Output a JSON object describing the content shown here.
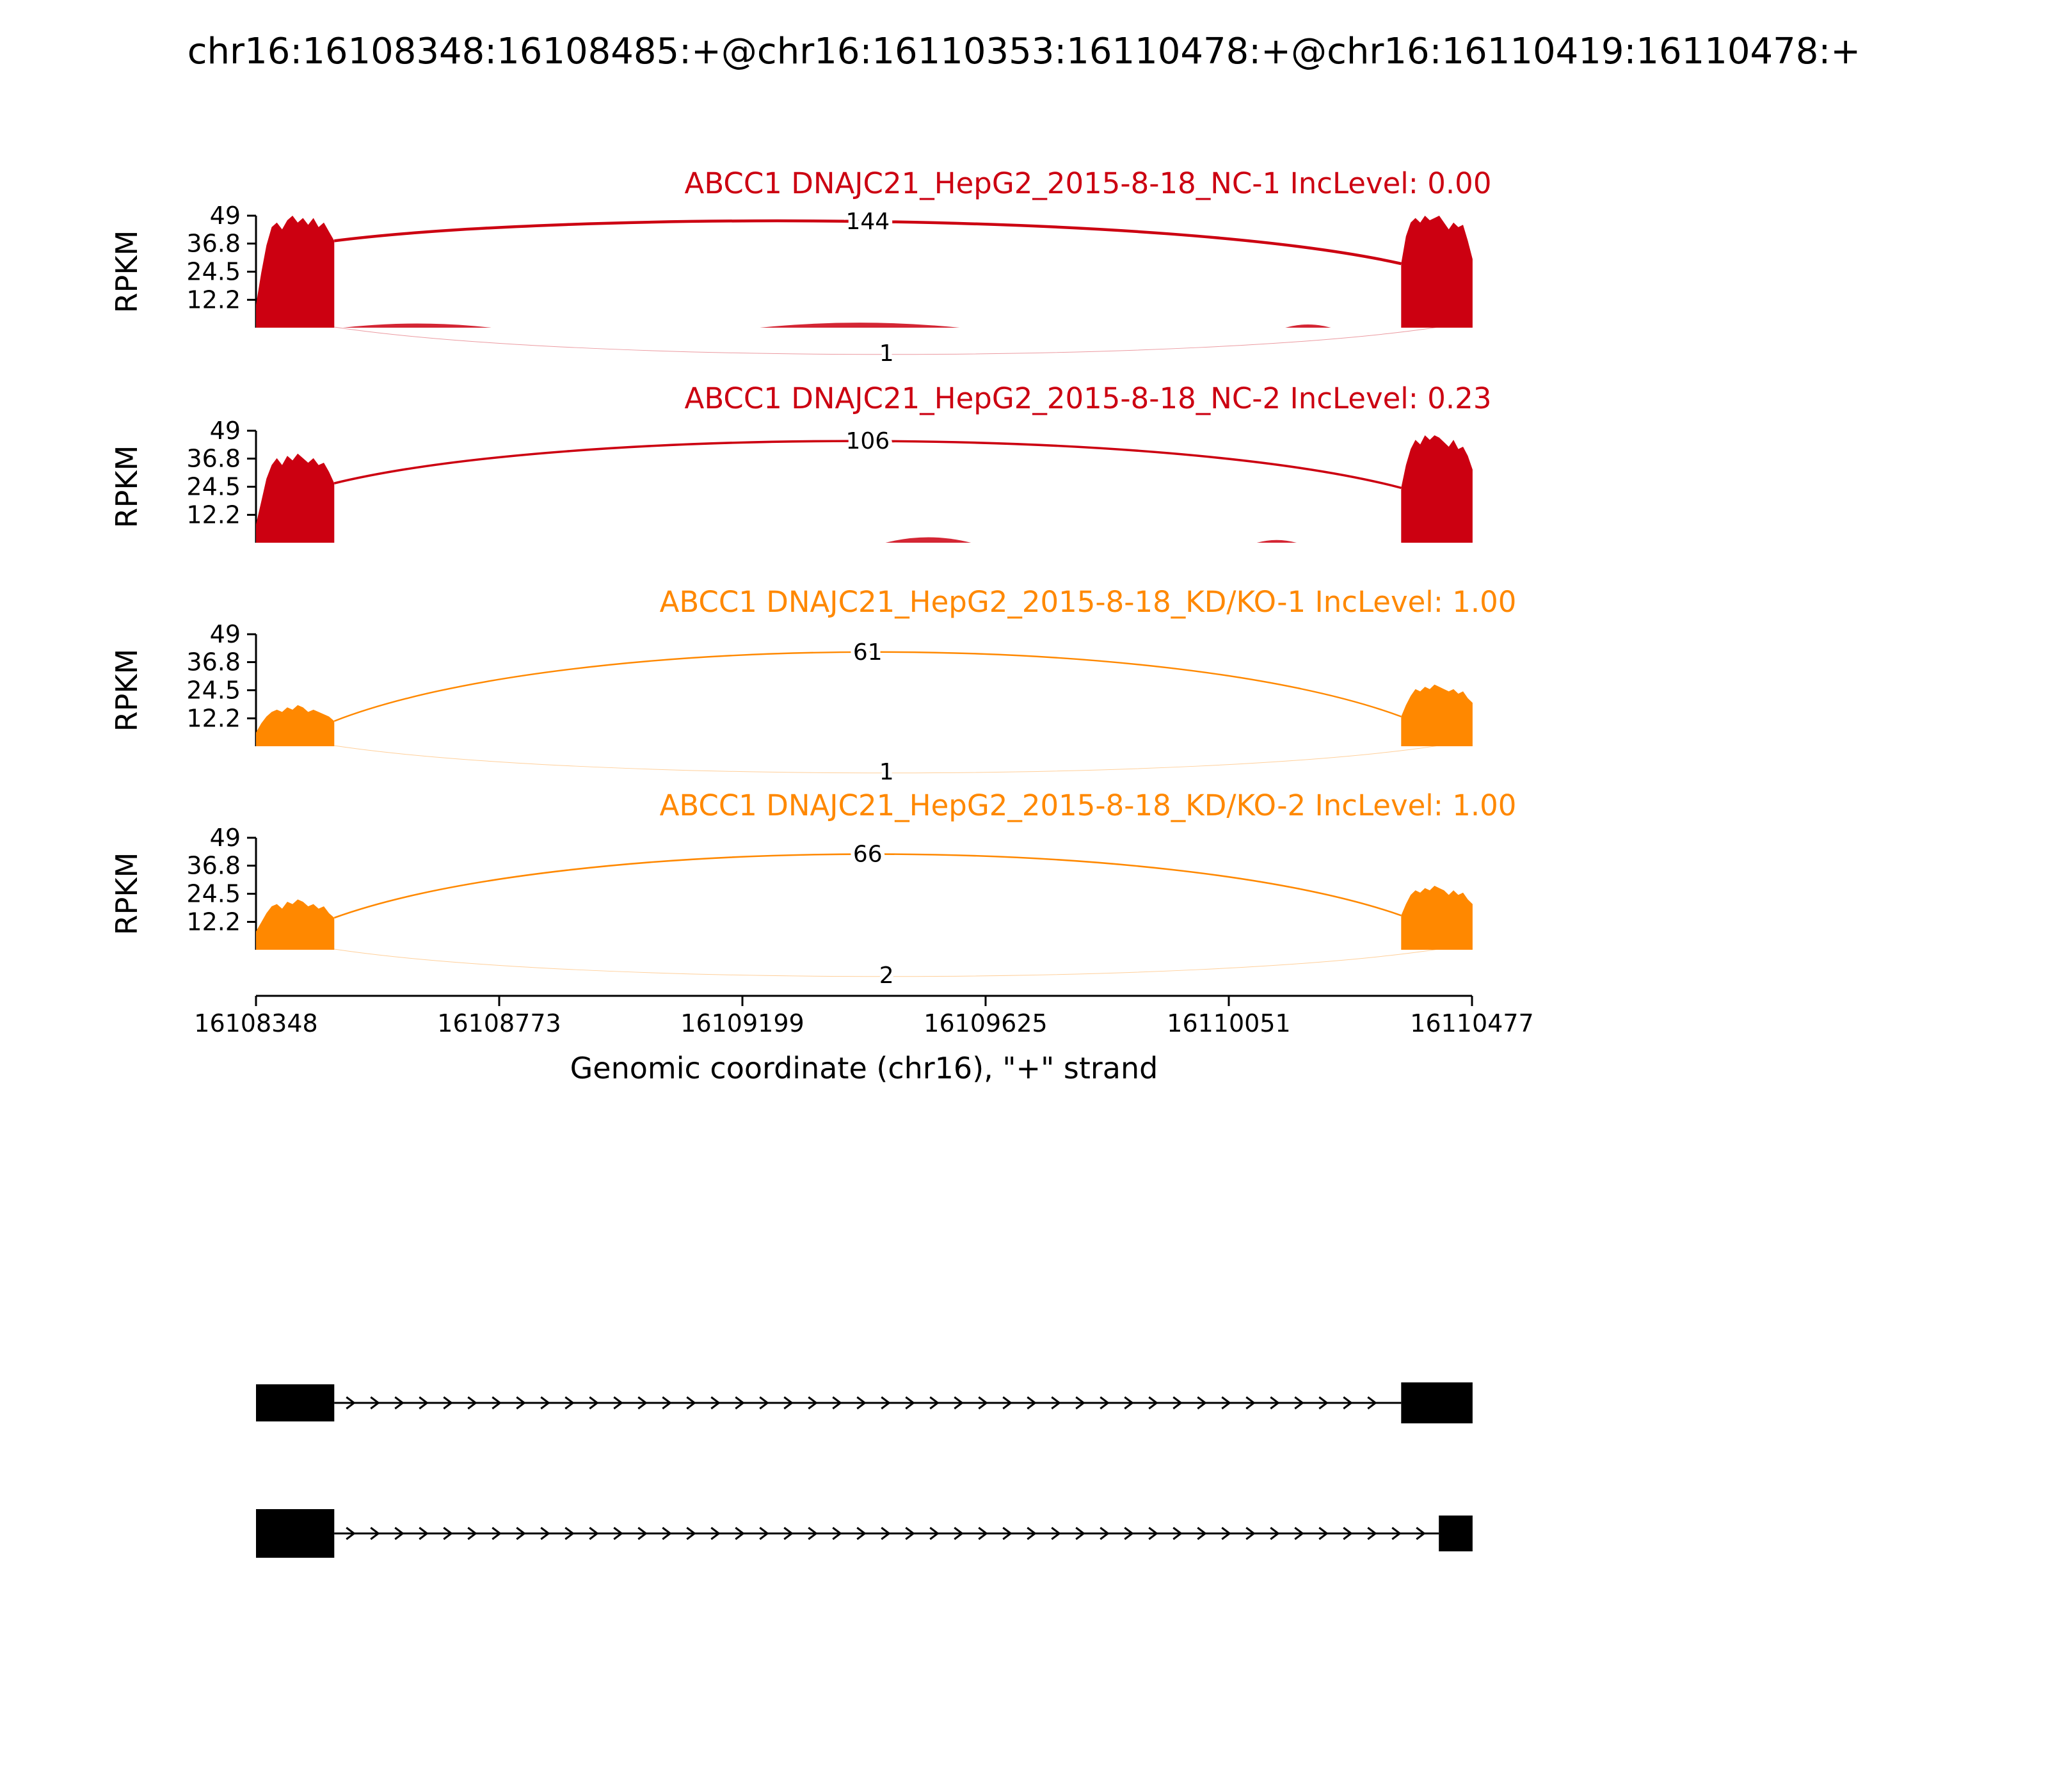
{
  "chart_data": {
    "type": "sashimi-coverage",
    "title": "chr16:16108348:16108485:+@chr16:16110353:16110478:+@chr16:16110419:16110478:+",
    "xlabel": "Genomic coordinate (chr16), \"+\" strand",
    "ylabel": "RPKM",
    "x_range": [
      16108348,
      16110477
    ],
    "x_tick_labels": [
      "16108348",
      "16108773",
      "16109199",
      "16109625",
      "16110051",
      "16110477"
    ],
    "y_ticks": [
      "49",
      "36.8",
      "24.5",
      "12.2"
    ],
    "y_max": 49,
    "legend": "none",
    "grid": false,
    "tracks": [
      {
        "title_text": "ABCC1 DNAJC21_HepG2_2015-8-18_NC-1 IncLevel: 0.00",
        "inc_level": "0.00",
        "color": "#CC0011",
        "exon_coverage": {
          "left": {
            "range": [
              16108348,
              16108485
            ],
            "rpkm": [
              10,
              24,
              36,
              44,
              46,
              43,
              47,
              49,
              46,
              48,
              45,
              48,
              44,
              46,
              42,
              38
            ]
          },
          "right": {
            "range": [
              16110353,
              16110478
            ],
            "rpkm": [
              28,
              40,
              46,
              48,
              46,
              49,
              47,
              48,
              49,
              46,
              43,
              46,
              44,
              45,
              38,
              30
            ]
          }
        },
        "noise": [
          [
            16108500,
            16108760,
            1.8
          ],
          [
            16109230,
            16109580,
            2.2
          ],
          [
            16110150,
            16110230,
            1.4
          ]
        ],
        "junctions": [
          {
            "from": 16108485,
            "to": 16110353,
            "count": 144,
            "side": "top"
          },
          {
            "from": 16108485,
            "to": 16110419,
            "count": 1,
            "side": "bottom"
          }
        ]
      },
      {
        "title_text": "ABCC1 DNAJC21_HepG2_2015-8-18_NC-2 IncLevel: 0.23",
        "inc_level": "0.23",
        "color": "#CC0011",
        "exon_coverage": {
          "left": {
            "range": [
              16108348,
              16108485
            ],
            "rpkm": [
              8,
              18,
              28,
              34,
              37,
              34,
              38,
              36,
              39,
              37,
              35,
              37,
              34,
              35,
              31,
              26
            ]
          },
          "right": {
            "range": [
              16110353,
              16110478
            ],
            "rpkm": [
              24,
              34,
              41,
              45,
              43,
              47,
              45,
              47,
              46,
              44,
              42,
              45,
              41,
              42,
              38,
              32
            ]
          }
        },
        "noise": [
          [
            16109450,
            16109600,
            2.4
          ],
          [
            16110100,
            16110170,
            1.2
          ]
        ],
        "junctions": [
          {
            "from": 16108485,
            "to": 16110353,
            "count": 106,
            "side": "top"
          }
        ]
      },
      {
        "title_text": "ABCC1 DNAJC21_HepG2_2015-8-18_KD/KO-1 IncLevel: 1.00",
        "inc_level": "1.00",
        "color": "#FF8800",
        "exon_coverage": {
          "left": {
            "range": [
              16108348,
              16108485
            ],
            "rpkm": [
              6,
              10,
              13,
              15,
              16,
              15,
              17,
              16,
              18,
              17,
              15,
              16,
              15,
              14,
              13,
              11
            ]
          },
          "right": {
            "range": [
              16110353,
              16110478
            ],
            "rpkm": [
              13,
              18,
              22,
              25,
              24,
              26,
              25,
              27,
              26,
              25,
              24,
              25,
              23,
              24,
              21,
              19
            ]
          }
        },
        "noise": [],
        "junctions": [
          {
            "from": 16108485,
            "to": 16110353,
            "count": 61,
            "side": "top"
          },
          {
            "from": 16108485,
            "to": 16110419,
            "count": 1,
            "side": "bottom"
          }
        ]
      },
      {
        "title_text": "ABCC1 DNAJC21_HepG2_2015-8-18_KD/KO-2 IncLevel: 1.00",
        "inc_level": "1.00",
        "color": "#FF8800",
        "exon_coverage": {
          "left": {
            "range": [
              16108348,
              16108485
            ],
            "rpkm": [
              8,
              12,
              16,
              19,
              20,
              18,
              21,
              20,
              22,
              21,
              19,
              20,
              18,
              19,
              16,
              14
            ]
          },
          "right": {
            "range": [
              16110353,
              16110478
            ],
            "rpkm": [
              15,
              20,
              24,
              26,
              25,
              27,
              26,
              28,
              27,
              26,
              24,
              26,
              24,
              25,
              22,
              20
            ]
          }
        },
        "noise": [],
        "junctions": [
          {
            "from": 16108485,
            "to": 16110353,
            "count": 66,
            "side": "top"
          },
          {
            "from": 16108485,
            "to": 16110419,
            "count": 2,
            "side": "bottom"
          }
        ]
      }
    ],
    "isoforms": [
      {
        "exons": [
          [
            16108348,
            16108485
          ],
          [
            16110353,
            16110478
          ]
        ]
      },
      {
        "exons": [
          [
            16108348,
            16108485
          ],
          [
            16110419,
            16110478
          ]
        ]
      }
    ]
  }
}
